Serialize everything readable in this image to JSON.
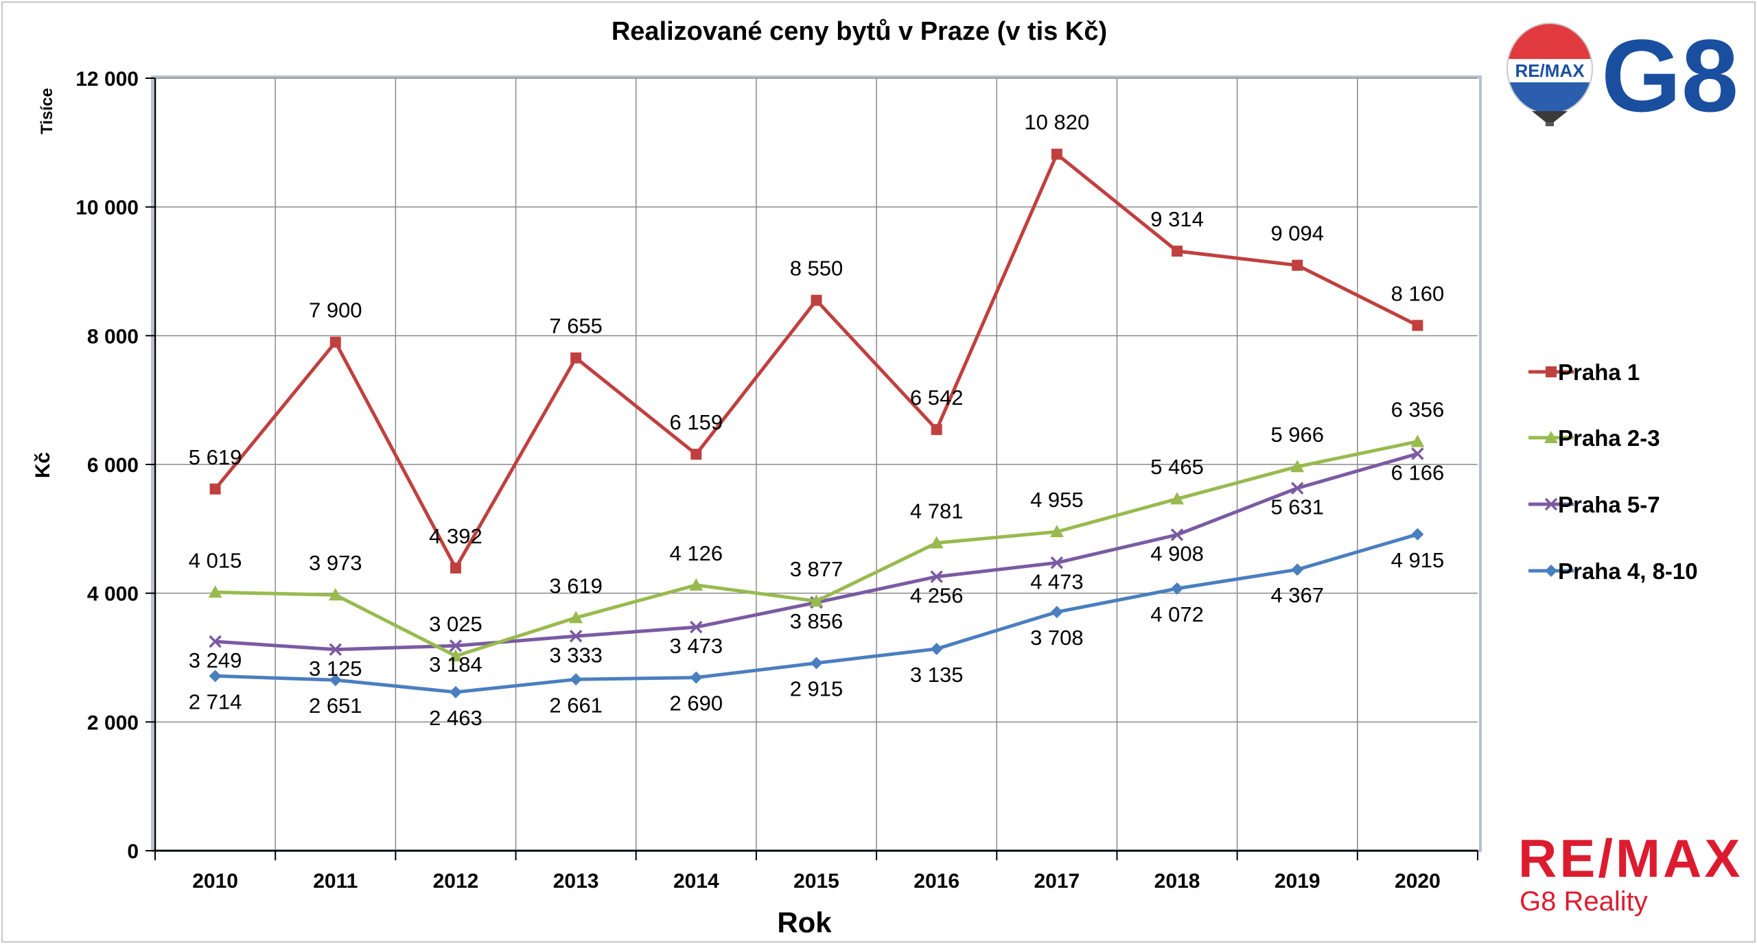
{
  "chart_data": {
    "type": "line",
    "title": "Realizované ceny bytů v Praze (v tis Kč)",
    "xlabel": "Rok",
    "ylabel": "Kč",
    "unit_label": "Tisíce",
    "categories": [
      "2010",
      "2011",
      "2012",
      "2013",
      "2014",
      "2015",
      "2016",
      "2017",
      "2018",
      "2019",
      "2020"
    ],
    "ylim": [
      0,
      12000
    ],
    "yticks": [
      0,
      2000,
      4000,
      6000,
      8000,
      10000,
      12000
    ],
    "ytick_labels": [
      "0",
      "2 000",
      "4 000",
      "6 000",
      "8 000",
      "10 000",
      "12 000"
    ],
    "grid": true,
    "legend_position": "right",
    "series": [
      {
        "name": "Praha 1",
        "color": "#c0403f",
        "marker": "square",
        "values": [
          5619,
          7900,
          4392,
          7655,
          6159,
          8550,
          6542,
          10820,
          9314,
          9094,
          8160
        ],
        "labels": [
          "5 619",
          "7 900",
          "4 392",
          "7 655",
          "6 159",
          "8 550",
          "6 542",
          "10 820",
          "9 314",
          "9 094",
          "8 160"
        ]
      },
      {
        "name": "Praha 2-3",
        "color": "#98ba4f",
        "marker": "triangle",
        "values": [
          4015,
          3973,
          3025,
          3619,
          4126,
          3877,
          4781,
          4955,
          5465,
          5966,
          6356
        ],
        "labels": [
          "4 015",
          "3 973",
          "3 025",
          "3 619",
          "4 126",
          "3 877",
          "4 781",
          "4 955",
          "5 465",
          "5 966",
          "6 356"
        ]
      },
      {
        "name": "Praha 5-7",
        "color": "#7b5aa2",
        "marker": "x",
        "values": [
          3249,
          3125,
          3184,
          3333,
          3473,
          3856,
          4256,
          4473,
          4908,
          5631,
          6166
        ],
        "labels": [
          "3 249",
          "3 125",
          "3 184",
          "3 333",
          "3 473",
          "3 856",
          "4 256",
          "4 473",
          "4 908",
          "5 631",
          "6 166"
        ]
      },
      {
        "name": "Praha 4, 8-10",
        "color": "#4a7fbf",
        "marker": "diamond",
        "values": [
          2714,
          2651,
          2463,
          2661,
          2690,
          2915,
          3135,
          3708,
          4072,
          4367,
          4915
        ],
        "labels": [
          "2 714",
          "2 651",
          "2 463",
          "2 661",
          "2 690",
          "2 915",
          "3 135",
          "3 708",
          "4 072",
          "4 367",
          "4 915"
        ]
      }
    ]
  },
  "branding": {
    "balloon_text": "RE/MAX",
    "logo_text": "G8",
    "footer_brand": "RE/MAX",
    "footer_sub": "G8 Reality",
    "colors": {
      "red": "#dc1c2e",
      "blue": "#1a4fa0"
    }
  }
}
